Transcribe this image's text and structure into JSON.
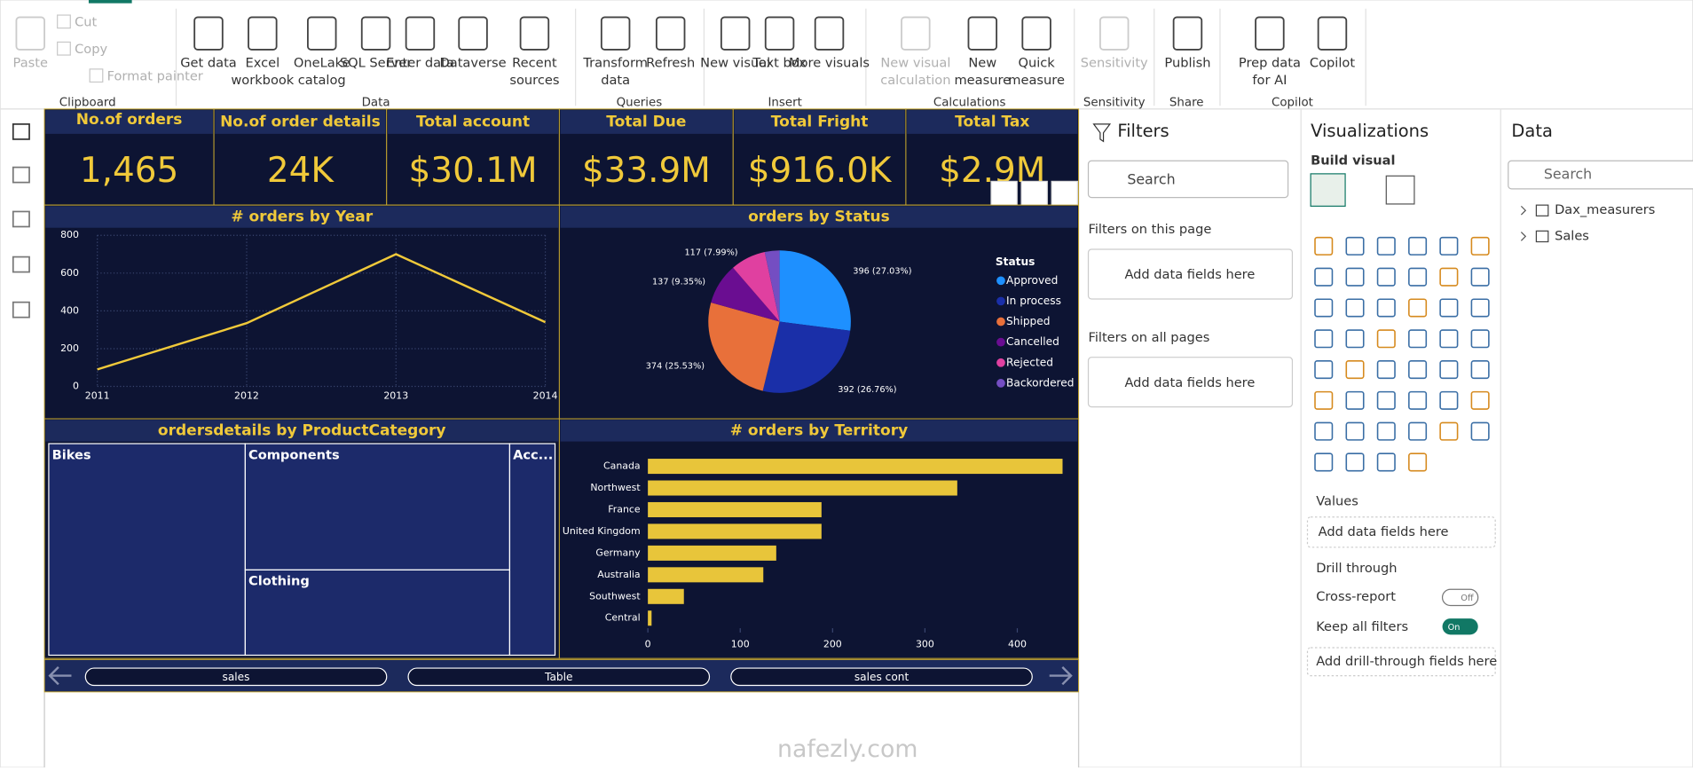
{
  "ribbon": {
    "groups": [
      {
        "label": "Clipboard",
        "buttons": [
          "Paste",
          "Cut",
          "Copy",
          "Format painter"
        ]
      },
      {
        "label": "Data",
        "buttons": [
          "Get data",
          "Excel workbook",
          "OneLake catalog",
          "SQL Server",
          "Enter data",
          "Dataverse",
          "Recent sources"
        ]
      },
      {
        "label": "Queries",
        "buttons": [
          "Transform data",
          "Refresh"
        ]
      },
      {
        "label": "Insert",
        "buttons": [
          "New visual",
          "Text box",
          "More visuals"
        ]
      },
      {
        "label": "Calculations",
        "buttons": [
          "New visual calculation",
          "New measure",
          "Quick measure"
        ]
      },
      {
        "label": "Sensitivity",
        "buttons": [
          "Sensitivity"
        ]
      },
      {
        "label": "Share",
        "buttons": [
          "Publish"
        ]
      },
      {
        "label": "Copilot",
        "buttons": [
          "Prep data for AI",
          "Copilot"
        ]
      }
    ]
  },
  "kpis": [
    {
      "title": "No.of orders",
      "value": "1,465"
    },
    {
      "title": "No.of order details",
      "value": "24K"
    },
    {
      "title": "Total account",
      "value": "$30.1M"
    },
    {
      "title": "Total Due",
      "value": "$33.9M"
    },
    {
      "title": "Total Fright",
      "value": "$916.0K"
    },
    {
      "title": "Total Tax",
      "value": "$2.9M"
    }
  ],
  "charts": {
    "line": {
      "type": "line",
      "title": "# orders by Year",
      "categories": [
        "2011",
        "2012",
        "2013",
        "2014"
      ],
      "values": [
        90,
        335,
        700,
        340
      ],
      "ylim": [
        0,
        800
      ],
      "yticks": [
        0,
        200,
        400,
        600,
        800
      ],
      "color": "#f0c93a",
      "grid": true
    },
    "pie": {
      "type": "pie",
      "title": "orders by Status",
      "legend_title": "Status",
      "categories": [
        "Approved",
        "In process",
        "Shipped",
        "Cancelled",
        "Rejected",
        "Backordered"
      ],
      "values": [
        396,
        392,
        374,
        137,
        117,
        49
      ],
      "value_labels": [
        "396 (27.03%)",
        "392 (26.76%)",
        "374 (25.53%)",
        "137 (9.35%)",
        "117 (7.99%)",
        null
      ],
      "colors": [
        "#1e90ff",
        "#1a2fa8",
        "#e8703a",
        "#6a0d91",
        "#e040a0",
        "#744ec2"
      ]
    },
    "treemap": {
      "type": "treemap",
      "title": "ordersdetails by ProductCategory",
      "categories": [
        "Bikes",
        "Components",
        "Clothing",
        "Acc..."
      ]
    },
    "bar": {
      "type": "bar",
      "title": "# orders by Territory",
      "categories": [
        "Canada",
        "Northwest",
        "France",
        "United Kingdom",
        "Germany",
        "Australia",
        "Southwest",
        "Central"
      ],
      "values": [
        449,
        335,
        188,
        188,
        139,
        125,
        39,
        4
      ],
      "xlim": [
        0,
        450
      ],
      "xticks": [
        0,
        100,
        200,
        300,
        400
      ],
      "color": "#e8c53a"
    }
  },
  "page_tabs": [
    "sales",
    "Table",
    "sales cont"
  ],
  "filters": {
    "title": "Filters",
    "search": "Search",
    "sections": [
      {
        "title": "Filters on this page",
        "well": "Add data fields here"
      },
      {
        "title": "Filters on all pages",
        "well": "Add data fields here"
      }
    ]
  },
  "visualizations": {
    "title": "Visualizations",
    "subtitle": "Build visual",
    "values_title": "Values",
    "values_well": "Add data fields here",
    "drill_title": "Drill through",
    "cross_report": "Cross-report",
    "cross_state": "Off",
    "keep_filters": "Keep all filters",
    "keep_state": "On",
    "drill_well": "Add drill-through fields here"
  },
  "data_pane": {
    "title": "Data",
    "search": "Search",
    "tables": [
      "Dax_measurers",
      "Sales"
    ]
  },
  "watermark": "nafezly.com"
}
